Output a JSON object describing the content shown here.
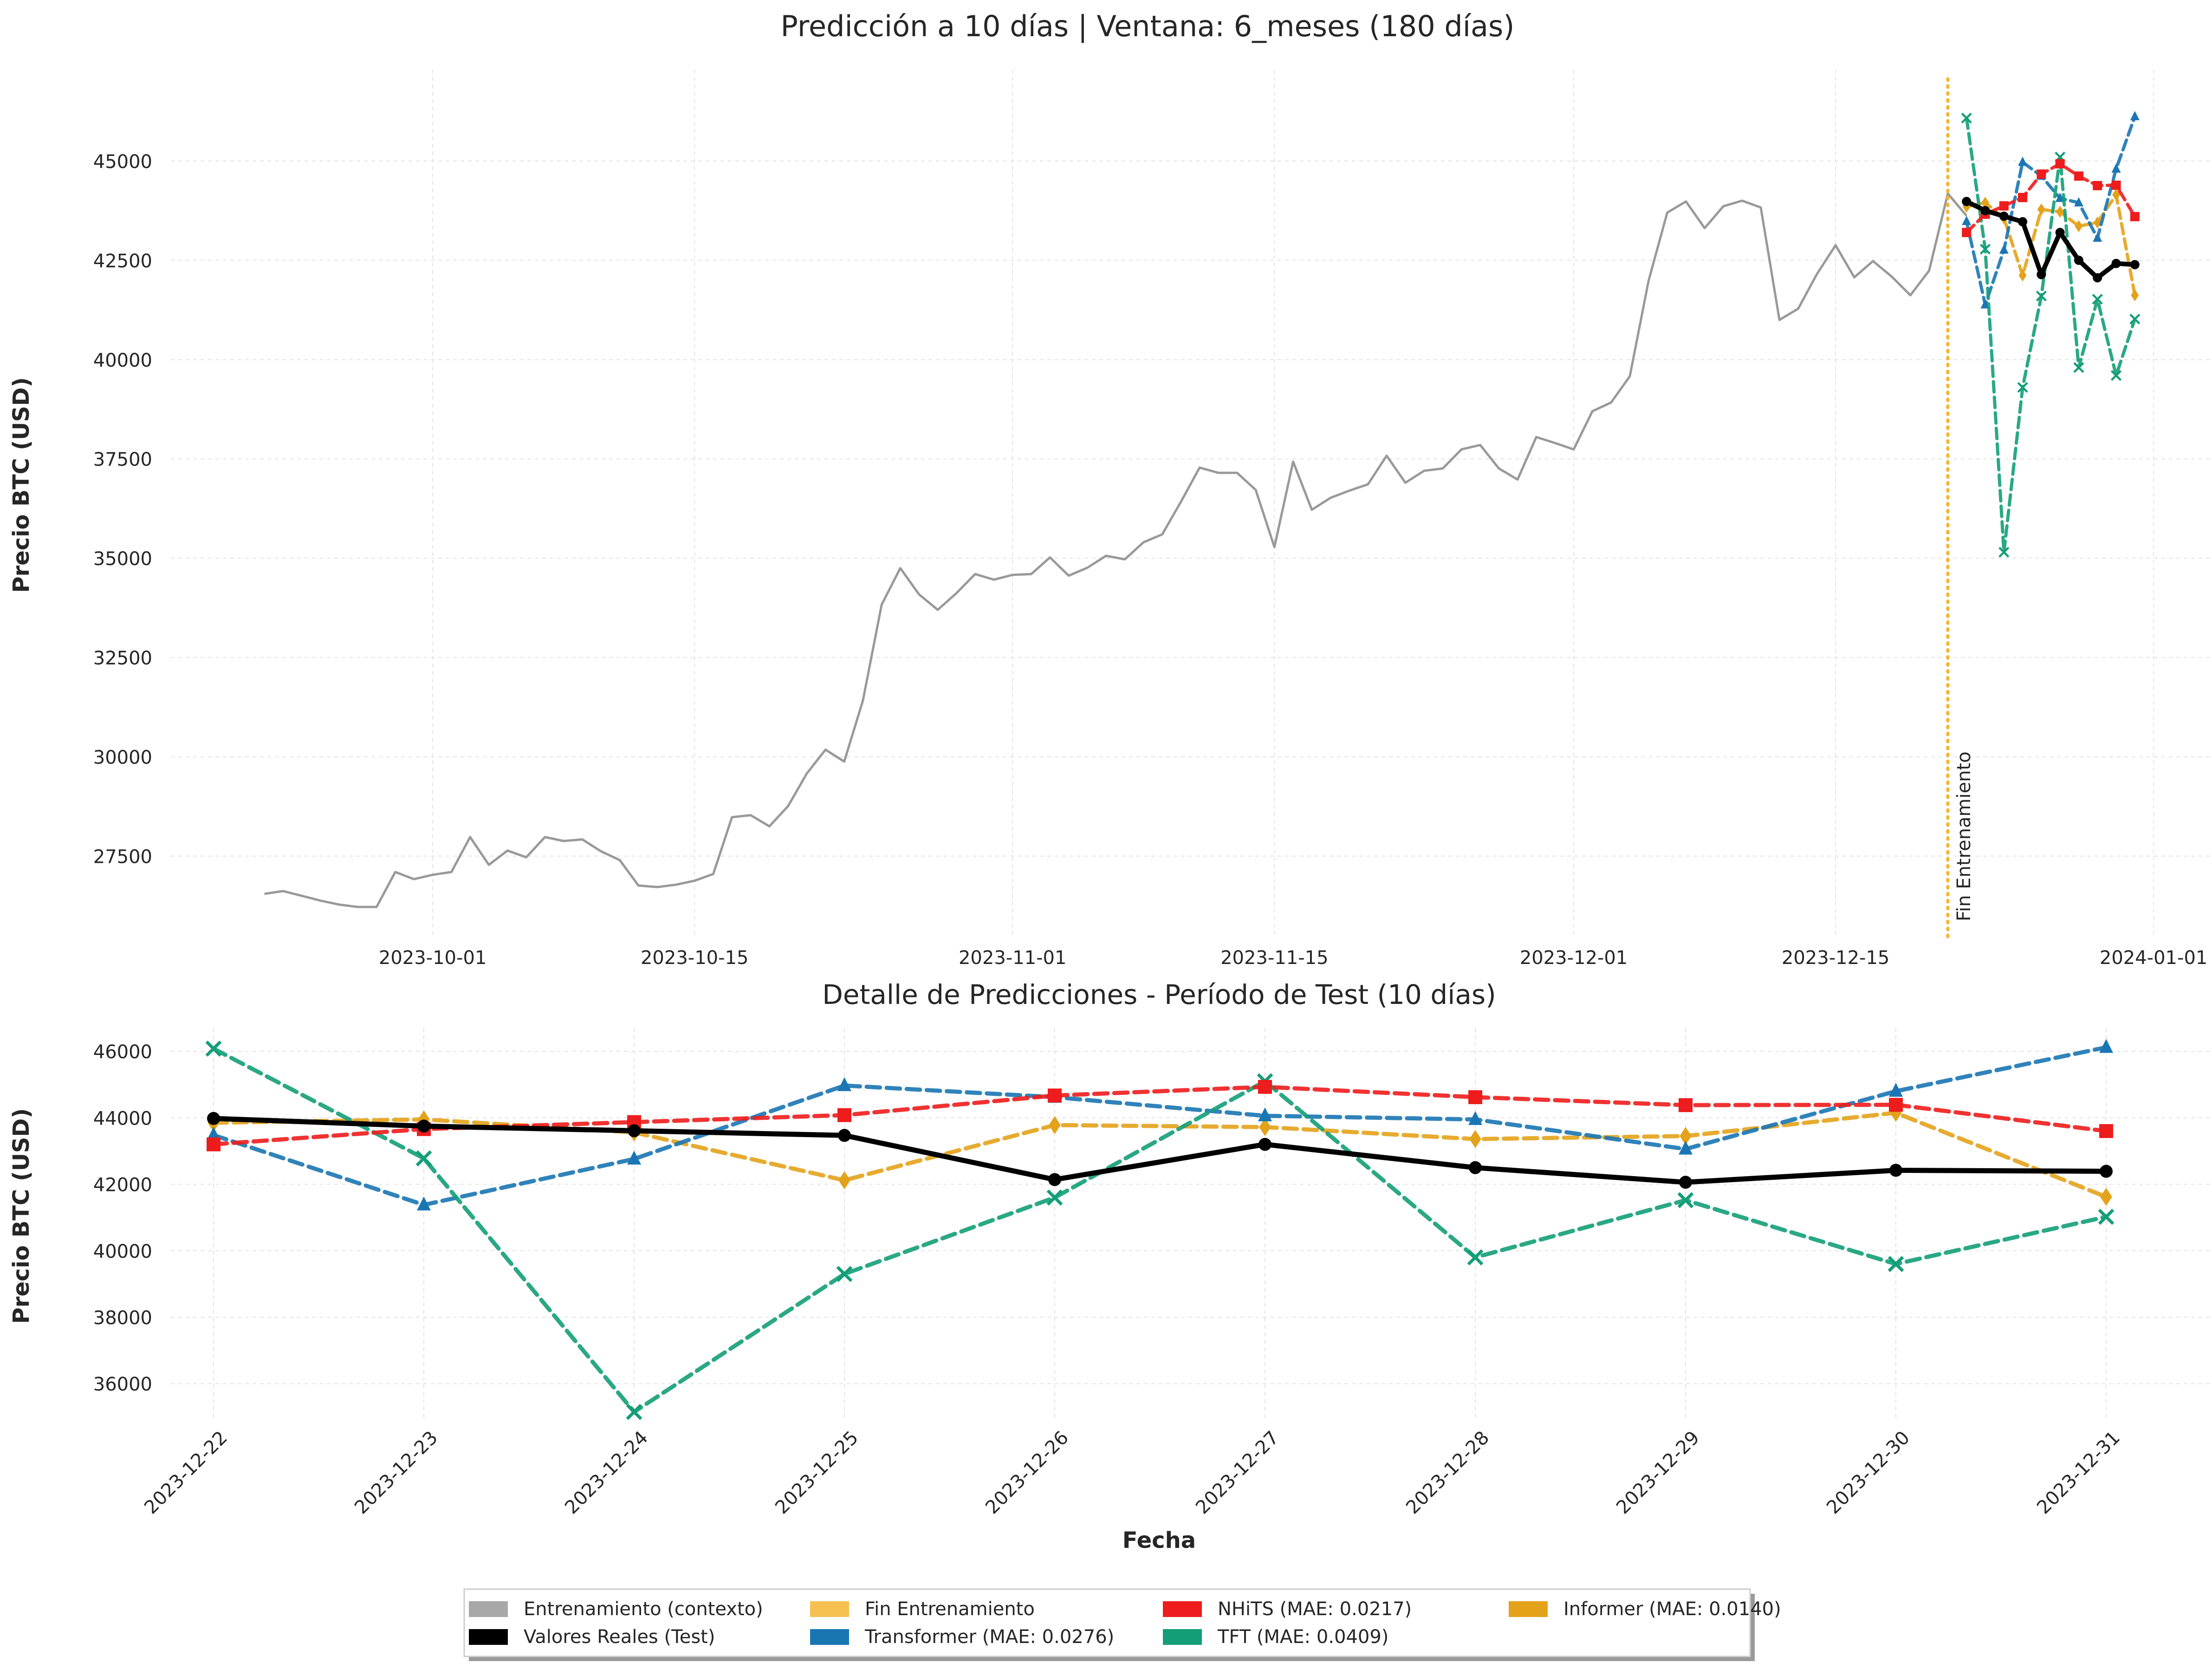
{
  "colors": {
    "training": "#999999",
    "real": "#000000",
    "fin": "#f5b531",
    "nhits": "#ee1c1c",
    "informer": "#e3a21a",
    "transformer": "#1a76b3",
    "tft": "#139e78",
    "grid": "#e3e3e3"
  },
  "chart_data": [
    {
      "type": "line",
      "title": "Predicción a 10 días | Ventana: 6_meses (180 días)",
      "xlabel": "",
      "ylabel": "Precio BTC (USD)",
      "x_axis": "date",
      "xlim": [
        "2023-09-17",
        "2024-01-04"
      ],
      "ylim": [
        25450,
        47300
      ],
      "xticks": [
        "2023-10-01",
        "2023-10-15",
        "2023-11-01",
        "2023-11-15",
        "2023-12-01",
        "2023-12-15",
        "2024-01-01"
      ],
      "yticks": [
        27500,
        30000,
        32500,
        35000,
        37500,
        40000,
        42500,
        45000
      ],
      "grid": true,
      "vline": {
        "x": "2023-12-21",
        "label": "Fin Entrenamiento"
      },
      "training": {
        "start": "2023-09-22",
        "values": [
          26550,
          26620,
          26500,
          26380,
          26280,
          26220,
          26220,
          27100,
          26920,
          27030,
          27100,
          27980,
          27280,
          27640,
          27470,
          27980,
          27880,
          27920,
          27620,
          27400,
          26760,
          26720,
          26780,
          26880,
          27050,
          28480,
          28530,
          28250,
          28760,
          29580,
          30180,
          29880,
          31420,
          33830,
          34750,
          34090,
          33700,
          34120,
          34600,
          34460,
          34580,
          34600,
          35020,
          34560,
          34760,
          35060,
          34970,
          35400,
          35600,
          36420,
          37280,
          37150,
          37150,
          36720,
          35280,
          37430,
          36220,
          36520,
          36700,
          36860,
          37580,
          36900,
          37200,
          37260,
          37740,
          37850,
          37260,
          36980,
          38050,
          37900,
          37740,
          38700,
          38920,
          39580,
          41980,
          43700,
          43980,
          43310,
          43860,
          44000,
          43830,
          41000,
          41280,
          42150,
          42880,
          42070,
          42480,
          42090,
          41620,
          42240,
          44180,
          43620
        ]
      },
      "series": [
        {
          "name": "Valores Reales (Test)",
          "key": "real",
          "style": "solid",
          "marker": "circle"
        },
        {
          "name": "NHiTS (MAE: 0.0217)",
          "key": "nhits",
          "style": "dashed",
          "marker": "square"
        },
        {
          "name": "Transformer (MAE: 0.0276)",
          "key": "transformer",
          "style": "dashed",
          "marker": "triangle"
        },
        {
          "name": "TFT (MAE: 0.0409)",
          "key": "tft",
          "style": "dashed",
          "marker": "x"
        },
        {
          "name": "Informer (MAE: 0.0140)",
          "key": "informer",
          "style": "dashed",
          "marker": "diamond"
        }
      ]
    },
    {
      "type": "line",
      "title": "Detalle de Predicciones - Período de Test (10 días)",
      "xlabel": "Fecha",
      "ylabel": "Precio BTC (USD)",
      "ylim": [
        34900,
        46700
      ],
      "yticks": [
        36000,
        38000,
        40000,
        42000,
        44000,
        46000
      ],
      "grid": true,
      "categories": [
        "2023-12-22",
        "2023-12-23",
        "2023-12-24",
        "2023-12-25",
        "2023-12-26",
        "2023-12-27",
        "2023-12-28",
        "2023-12-29",
        "2023-12-30",
        "2023-12-31"
      ],
      "series": [
        {
          "name": "Informer (MAE: 0.0140)",
          "key": "informer",
          "style": "dashed",
          "marker": "diamond",
          "values": [
            43850,
            43950,
            43560,
            42120,
            43780,
            43720,
            43360,
            43450,
            44150,
            41620
          ]
        },
        {
          "name": "Transformer (MAE: 0.0276)",
          "key": "transformer",
          "style": "dashed",
          "marker": "triangle",
          "values": [
            43480,
            41380,
            42760,
            44970,
            44620,
            44060,
            43950,
            43060,
            44800,
            46120
          ]
        },
        {
          "name": "TFT (MAE: 0.0409)",
          "key": "tft",
          "style": "dashed",
          "marker": "x",
          "values": [
            46080,
            42780,
            35150,
            39300,
            41600,
            45100,
            39800,
            41520,
            39600,
            41020
          ]
        },
        {
          "name": "NHiTS (MAE: 0.0217)",
          "key": "nhits",
          "style": "dashed",
          "marker": "square",
          "values": [
            43200,
            43660,
            43870,
            44080,
            44670,
            44930,
            44620,
            44380,
            44390,
            43600
          ]
        },
        {
          "name": "Valores Reales (Test)",
          "key": "real",
          "style": "solid",
          "marker": "circle",
          "values": [
            43980,
            43750,
            43610,
            43470,
            42140,
            43200,
            42500,
            42060,
            42420,
            42390
          ]
        }
      ]
    }
  ],
  "legend": {
    "placement": "bottom-center",
    "items": [
      {
        "label": "Entrenamiento (contexto)",
        "key": "training"
      },
      {
        "label": "Valores Reales (Test)",
        "key": "real"
      },
      {
        "label": "Fin Entrenamiento",
        "key": "fin"
      },
      {
        "label": "Transformer (MAE: 0.0276)",
        "key": "transformer"
      },
      {
        "label": "NHiTS (MAE: 0.0217)",
        "key": "nhits"
      },
      {
        "label": "TFT (MAE: 0.0409)",
        "key": "tft"
      },
      {
        "label": "Informer (MAE: 0.0140)",
        "key": "informer"
      }
    ]
  }
}
